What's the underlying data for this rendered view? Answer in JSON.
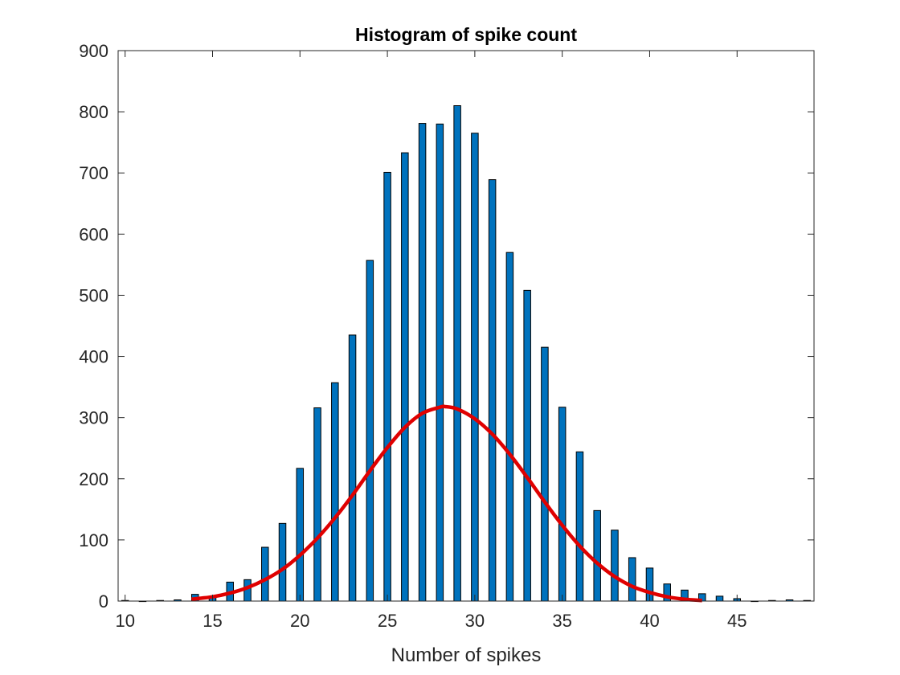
{
  "chart_data": {
    "type": "bar",
    "title": "Histogram of spike count",
    "xlabel": "Number of spikes",
    "ylabel": "",
    "xlim": [
      9.6,
      49.4
    ],
    "ylim": [
      0,
      900
    ],
    "xticks": [
      10,
      15,
      20,
      25,
      30,
      35,
      40,
      45
    ],
    "yticks": [
      0,
      100,
      200,
      300,
      400,
      500,
      600,
      700,
      800,
      900
    ],
    "grid": false,
    "bar_color": "#0072BD",
    "curve_color": "#E00000",
    "series": [
      {
        "type": "bar",
        "x": [
          10,
          11,
          12,
          13,
          14,
          15,
          16,
          17,
          18,
          19,
          20,
          21,
          22,
          23,
          24,
          25,
          26,
          27,
          28,
          29,
          30,
          31,
          32,
          33,
          34,
          35,
          36,
          37,
          38,
          39,
          40,
          41,
          42,
          43,
          44,
          45,
          46,
          47,
          48,
          49
        ],
        "values": [
          1,
          0,
          1,
          2,
          11,
          8,
          31,
          35,
          88,
          127,
          217,
          316,
          357,
          435,
          557,
          701,
          733,
          781,
          780,
          810,
          765,
          689,
          570,
          508,
          415,
          317,
          244,
          148,
          116,
          71,
          54,
          28,
          18,
          12,
          8,
          4,
          0,
          1,
          2,
          1
        ]
      },
      {
        "type": "line",
        "x": [
          13.8,
          15,
          16,
          17,
          18,
          19,
          20,
          21,
          22,
          23,
          24,
          25,
          26,
          27,
          28,
          28.3,
          29,
          30,
          31,
          32,
          33,
          34,
          35,
          36,
          37,
          38,
          39,
          40,
          41,
          42,
          43
        ],
        "values": [
          3,
          7,
          13,
          22,
          35,
          52,
          75,
          103,
          136,
          173,
          213,
          251,
          284,
          307,
          317,
          318,
          314,
          298,
          273,
          240,
          202,
          162,
          124,
          90,
          62,
          40,
          24,
          14,
          7,
          3,
          1
        ]
      }
    ]
  }
}
